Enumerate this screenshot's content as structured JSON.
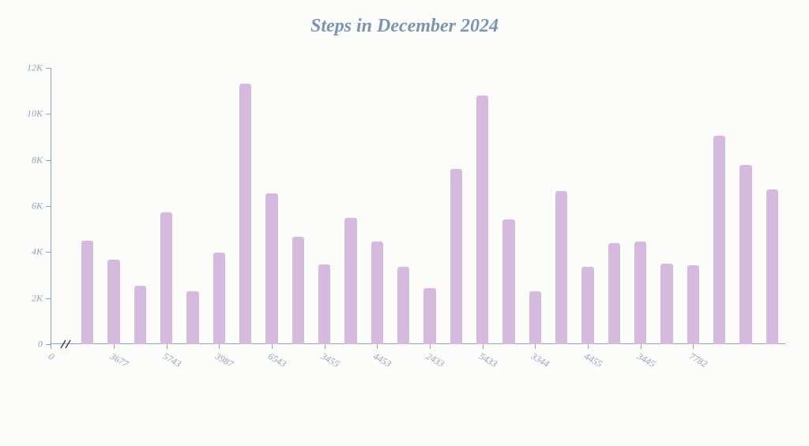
{
  "chart": {
    "type": "bar",
    "title": "Steps in December 2024",
    "title_color": "#7a94b4",
    "title_fontsize": 24,
    "background_color": "#fcfcfa",
    "bar_color": "#d5b9df",
    "axis_color": "#8fa5bf",
    "label_color": "#8fa5bf",
    "label_fontsize": 12,
    "bar_width_ratio": 0.46,
    "y": {
      "min": 0,
      "max": 12000,
      "ticks": [
        0,
        2000,
        4000,
        6000,
        8000,
        10000,
        12000
      ],
      "tick_labels": [
        "0",
        "2K",
        "4K",
        "6K",
        "8K",
        "10K",
        "12K"
      ]
    },
    "x": {
      "axis_break": true,
      "tick_labels": [
        "0",
        "3677",
        "5743",
        "3987",
        "6543",
        "3455",
        "4453",
        "2433",
        "5433",
        "3344",
        "4455",
        "3445",
        "7782"
      ],
      "tick_rotation_deg": 30
    },
    "values": [
      4500,
      3677,
      2546,
      5743,
      2312,
      3987,
      11300,
      6543,
      4648,
      3455,
      5500,
      4453,
      3364,
      2433,
      7620,
      10800,
      5433,
      2300,
      6637,
      3344,
      4391,
      4455,
      3489,
      3445,
      9050,
      7782,
      6720
    ]
  }
}
